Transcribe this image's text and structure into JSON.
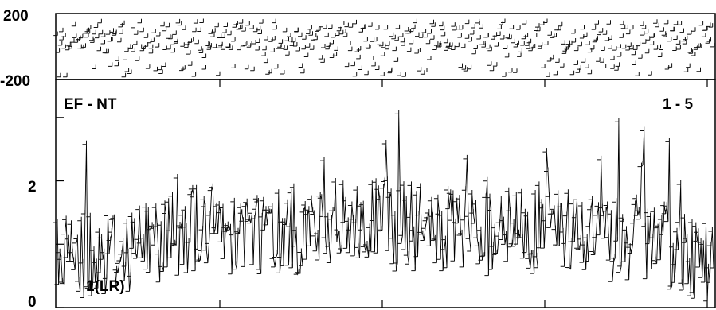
{
  "chart_data": [
    {
      "type": "scatter",
      "panel": "phase",
      "ylim": [
        -200,
        200
      ],
      "yticks": [
        "200",
        "-200"
      ],
      "grid": false,
      "n_points": 520
    },
    {
      "type": "line",
      "panel": "amplitude",
      "ylim": [
        0,
        3.6
      ],
      "yticks": [
        "2",
        "0"
      ],
      "grid": false,
      "baseline_label": "EF - NT",
      "scan_label": "1 - 5",
      "series_label": "1(LR)",
      "n_points": 520,
      "mean_envelope": [
        [
          0,
          0.8
        ],
        [
          0.1,
          0.9
        ],
        [
          0.2,
          1.25
        ],
        [
          0.35,
          1.2
        ],
        [
          0.5,
          1.3
        ],
        [
          0.6,
          1.15
        ],
        [
          0.75,
          1.25
        ],
        [
          0.9,
          1.0
        ],
        [
          1.0,
          0.75
        ]
      ]
    }
  ]
}
